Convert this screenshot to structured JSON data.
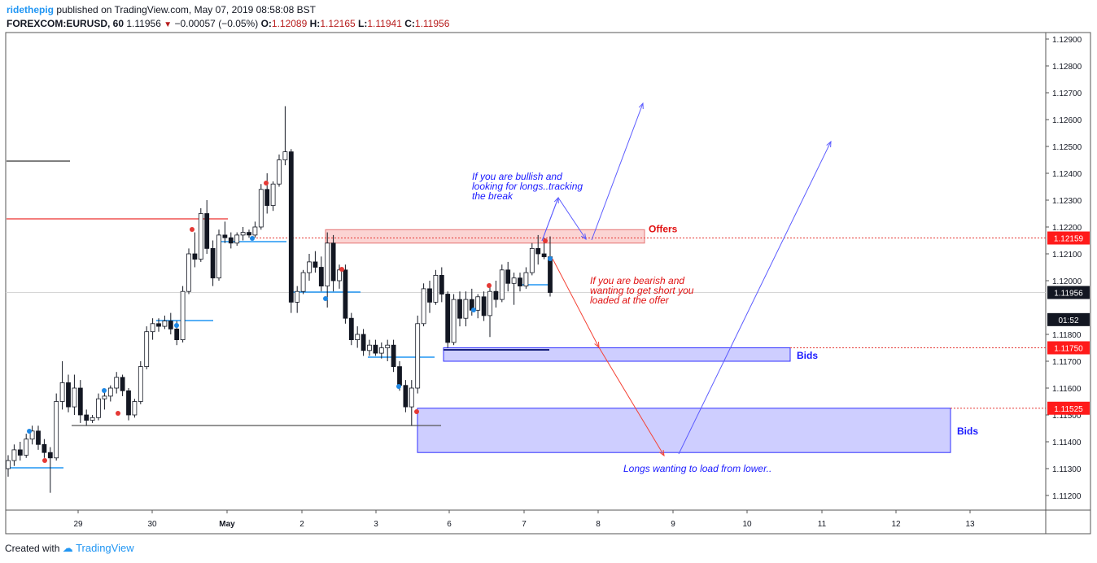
{
  "header": {
    "author": "ridethepig",
    "published_text": "published on TradingView.com, May 07, 2019 08:58:08 BST",
    "symbol": "FOREXCOM:EURUSD, 60",
    "last": "1.11956",
    "change": "−0.00057 (−0.05%)",
    "o_label": "O:",
    "o_value": "1.12089",
    "h_label": "H:",
    "h_value": "1.12165",
    "l_label": "L:",
    "l_value": "1.11941",
    "c_label": "C:",
    "c_value": "1.11956"
  },
  "footer": {
    "created_with": "Created with",
    "brand": "TradingView"
  },
  "colors": {
    "up": "#ffffff",
    "down": "#131722",
    "wick": "#131722",
    "offers": "#ef5350",
    "bids": "#3f3fff",
    "note_blue": "#1a1aff",
    "note_red": "#e01010"
  },
  "chart_data": {
    "type": "candlestick",
    "title": "",
    "x_ticks": [
      "29",
      "30",
      "May",
      "2",
      "3",
      "6",
      "7",
      "8",
      "9",
      "10",
      "11",
      "12",
      "13"
    ],
    "y_ticks": [
      "1.12900",
      "1.12800",
      "1.12700",
      "1.12600",
      "1.12500",
      "1.12400",
      "1.12300",
      "1.12200",
      "1.12100",
      "1.12000",
      "1.11800",
      "1.11700",
      "1.11600",
      "1.11500",
      "1.11400",
      "1.11300",
      "1.11200"
    ],
    "ylim": [
      1.1114,
      1.1292
    ],
    "price_labels": [
      {
        "text": "1.12159",
        "price": 1.12159,
        "style": "red"
      },
      {
        "text": "1.11956",
        "price": 1.11956,
        "style": "dark"
      },
      {
        "text": "01:52",
        "price": 1.11855,
        "style": "dark"
      },
      {
        "text": "1.11750",
        "price": 1.1175,
        "style": "red"
      },
      {
        "text": "1.11525",
        "price": 1.11525,
        "style": "red"
      }
    ],
    "zones": [
      {
        "name": "Offers",
        "top": 1.1219,
        "bottom": 1.1214,
        "kind": "offers"
      },
      {
        "name": "Bids",
        "top": 1.1175,
        "bottom": 1.117,
        "kind": "bids"
      },
      {
        "name": "Bids",
        "top": 1.11525,
        "bottom": 1.1136,
        "kind": "bids"
      }
    ],
    "annotations": [
      {
        "text": "If you are bullish and",
        "color": "blue"
      },
      {
        "text": "looking for longs..tracking",
        "color": "blue"
      },
      {
        "text": "the break",
        "color": "blue"
      },
      {
        "text": "If you are bearish and",
        "color": "red"
      },
      {
        "text": "wanting to get short you",
        "color": "red"
      },
      {
        "text": "loaded at the offer",
        "color": "red"
      },
      {
        "text": "Longs wanting to load from lower..",
        "color": "blue"
      }
    ],
    "candles": [
      [
        1.113,
        1.1135,
        1.1127,
        1.1133
      ],
      [
        1.1133,
        1.1139,
        1.1131,
        1.1137
      ],
      [
        1.1137,
        1.114,
        1.1133,
        1.1135
      ],
      [
        1.1135,
        1.1143,
        1.1134,
        1.1141
      ],
      [
        1.1141,
        1.1146,
        1.1139,
        1.1144
      ],
      [
        1.1144,
        1.1146,
        1.1137,
        1.1139
      ],
      [
        1.1139,
        1.1141,
        1.1134,
        1.1136
      ],
      [
        1.1136,
        1.1138,
        1.1121,
        1.1134
      ],
      [
        1.1134,
        1.1158,
        1.1133,
        1.1155
      ],
      [
        1.1155,
        1.117,
        1.1152,
        1.1162
      ],
      [
        1.1162,
        1.1165,
        1.1151,
        1.1153
      ],
      [
        1.1153,
        1.1165,
        1.115,
        1.116
      ],
      [
        1.116,
        1.1163,
        1.1147,
        1.115
      ],
      [
        1.115,
        1.1152,
        1.1146,
        1.1148
      ],
      [
        1.1148,
        1.115,
        1.1147,
        1.1149
      ],
      [
        1.1149,
        1.1158,
        1.1148,
        1.1156
      ],
      [
        1.1156,
        1.1159,
        1.1152,
        1.1157
      ],
      [
        1.1157,
        1.1161,
        1.1155,
        1.116
      ],
      [
        1.116,
        1.1166,
        1.1158,
        1.1164
      ],
      [
        1.1164,
        1.1165,
        1.1157,
        1.1159
      ],
      [
        1.1159,
        1.116,
        1.1148,
        1.115
      ],
      [
        1.115,
        1.1156,
        1.1149,
        1.1155
      ],
      [
        1.1155,
        1.117,
        1.1154,
        1.1168
      ],
      [
        1.1168,
        1.1183,
        1.1167,
        1.1181
      ],
      [
        1.1181,
        1.1186,
        1.1178,
        1.1184
      ],
      [
        1.1184,
        1.1186,
        1.1181,
        1.1183
      ],
      [
        1.1183,
        1.1187,
        1.1182,
        1.1185
      ],
      [
        1.1185,
        1.1188,
        1.118,
        1.1182
      ],
      [
        1.1182,
        1.1185,
        1.1176,
        1.1178
      ],
      [
        1.1178,
        1.1198,
        1.1177,
        1.1196
      ],
      [
        1.1196,
        1.1212,
        1.1195,
        1.121
      ],
      [
        1.121,
        1.1218,
        1.1205,
        1.1208
      ],
      [
        1.1208,
        1.1227,
        1.1207,
        1.1225
      ],
      [
        1.1225,
        1.123,
        1.121,
        1.1212
      ],
      [
        1.1212,
        1.1215,
        1.1198,
        1.1201
      ],
      [
        1.1201,
        1.1219,
        1.12,
        1.1217
      ],
      [
        1.1217,
        1.1222,
        1.1214,
        1.1216
      ],
      [
        1.1216,
        1.1218,
        1.1212,
        1.1214
      ],
      [
        1.1214,
        1.1218,
        1.1213,
        1.1217
      ],
      [
        1.1217,
        1.122,
        1.1215,
        1.1218
      ],
      [
        1.1218,
        1.1219,
        1.1216,
        1.1217
      ],
      [
        1.1217,
        1.1222,
        1.1216,
        1.122
      ],
      [
        1.122,
        1.1236,
        1.1219,
        1.1234
      ],
      [
        1.1234,
        1.124,
        1.1225,
        1.1228
      ],
      [
        1.1228,
        1.1237,
        1.1226,
        1.1236
      ],
      [
        1.1236,
        1.1247,
        1.1235,
        1.1245
      ],
      [
        1.1245,
        1.1265,
        1.1243,
        1.1248
      ],
      [
        1.1248,
        1.1249,
        1.1188,
        1.1192
      ],
      [
        1.1192,
        1.1198,
        1.1188,
        1.1196
      ],
      [
        1.1196,
        1.1204,
        1.1195,
        1.1203
      ],
      [
        1.1203,
        1.121,
        1.12,
        1.1207
      ],
      [
        1.1207,
        1.1211,
        1.1203,
        1.1205
      ],
      [
        1.1205,
        1.1209,
        1.1196,
        1.1198
      ],
      [
        1.1198,
        1.1218,
        1.119,
        1.1214
      ],
      [
        1.1214,
        1.1217,
        1.1196,
        1.12
      ],
      [
        1.12,
        1.1206,
        1.1197,
        1.1204
      ],
      [
        1.1204,
        1.1206,
        1.1184,
        1.1186
      ],
      [
        1.1186,
        1.1188,
        1.1176,
        1.1178
      ],
      [
        1.1178,
        1.1183,
        1.1175,
        1.118
      ],
      [
        1.118,
        1.1182,
        1.1172,
        1.1174
      ],
      [
        1.1174,
        1.1178,
        1.1172,
        1.1176
      ],
      [
        1.1176,
        1.1178,
        1.1172,
        1.1173
      ],
      [
        1.1173,
        1.1177,
        1.1171,
        1.1175
      ],
      [
        1.1175,
        1.1178,
        1.117,
        1.1176
      ],
      [
        1.1176,
        1.1178,
        1.1166,
        1.1168
      ],
      [
        1.1168,
        1.117,
        1.1159,
        1.1161
      ],
      [
        1.1161,
        1.1163,
        1.1151,
        1.1153
      ],
      [
        1.1153,
        1.1163,
        1.1146,
        1.116
      ],
      [
        1.116,
        1.1187,
        1.1158,
        1.1184
      ],
      [
        1.1184,
        1.1199,
        1.1183,
        1.1197
      ],
      [
        1.1197,
        1.12,
        1.1188,
        1.1192
      ],
      [
        1.1192,
        1.1204,
        1.1191,
        1.1202
      ],
      [
        1.1202,
        1.1205,
        1.1192,
        1.1195
      ],
      [
        1.1195,
        1.1196,
        1.1175,
        1.1177
      ],
      [
        1.1177,
        1.1195,
        1.1176,
        1.1193
      ],
      [
        1.1193,
        1.1196,
        1.1183,
        1.1186
      ],
      [
        1.1186,
        1.1196,
        1.1183,
        1.1193
      ],
      [
        1.1193,
        1.1197,
        1.1187,
        1.1189
      ],
      [
        1.1189,
        1.1195,
        1.1186,
        1.1194
      ],
      [
        1.1194,
        1.1196,
        1.1185,
        1.1187
      ],
      [
        1.1187,
        1.1199,
        1.1179,
        1.1196
      ],
      [
        1.1196,
        1.12,
        1.119,
        1.1193
      ],
      [
        1.1193,
        1.1206,
        1.1192,
        1.1204
      ],
      [
        1.1204,
        1.1207,
        1.1196,
        1.1199
      ],
      [
        1.1199,
        1.1203,
        1.1191,
        1.1201
      ],
      [
        1.1201,
        1.1203,
        1.1196,
        1.1198
      ],
      [
        1.1198,
        1.1205,
        1.1197,
        1.1203
      ],
      [
        1.1203,
        1.1214,
        1.1202,
        1.1212
      ],
      [
        1.1212,
        1.1217,
        1.1206,
        1.121
      ],
      [
        1.121,
        1.1216,
        1.1208,
        1.12089
      ],
      [
        1.12089,
        1.12165,
        1.11941,
        1.11956
      ]
    ]
  }
}
